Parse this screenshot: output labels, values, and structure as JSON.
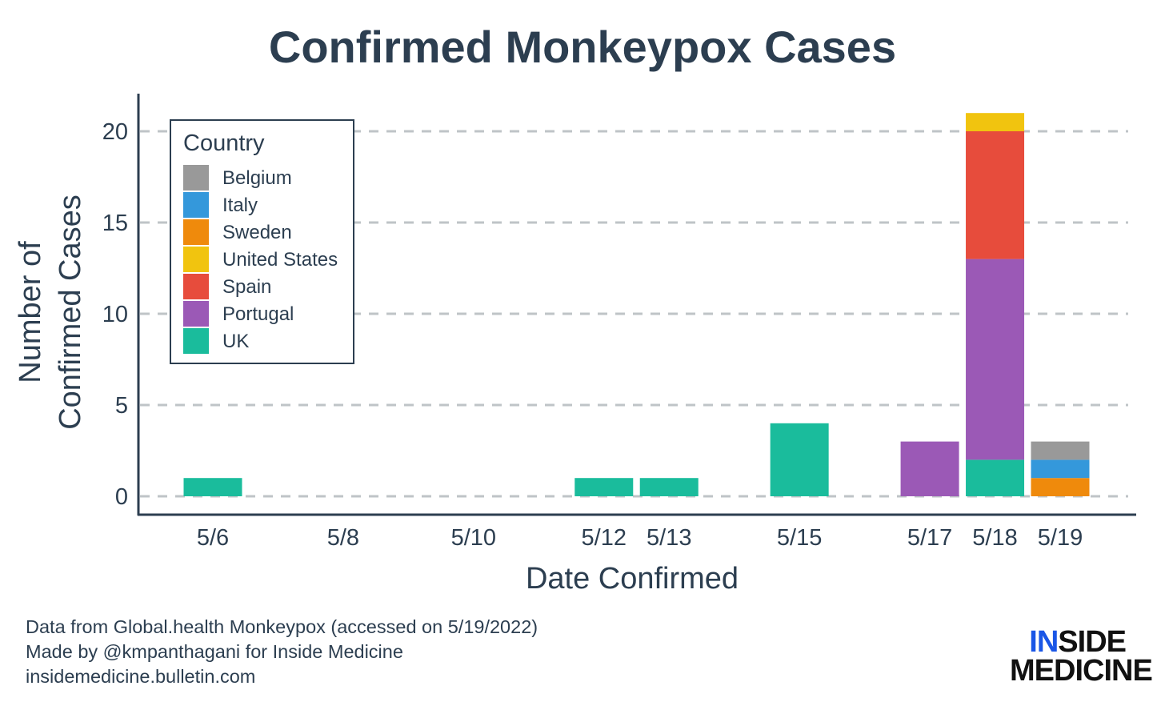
{
  "colors": {
    "Belgium": "#999999",
    "Italy": "#3498db",
    "Sweden": "#ef8a0c",
    "United States": "#f1c40f",
    "Spain": "#e74c3c",
    "Portugal": "#9b59b6",
    "UK": "#1abc9c",
    "text": "#2c3e50",
    "grid": "#bfc4c7",
    "logo_accent": "#1a56e6"
  },
  "chart_data": {
    "type": "bar",
    "stacked": true,
    "title": "Confirmed Monkeypox Cases",
    "xlabel": "Date Confirmed",
    "ylabel": [
      "Number of",
      "Confirmed Cases"
    ],
    "x_ticks": [
      "5/6",
      "5/8",
      "5/10",
      "5/12",
      "5/13",
      "5/15",
      "5/17",
      "5/18",
      "5/19"
    ],
    "y_ticks": [
      0,
      5,
      10,
      15,
      20
    ],
    "ylim": [
      -1,
      22
    ],
    "grid": "horizontal dashed",
    "legend": {
      "title": "Country",
      "position": "top-left",
      "entries": [
        "Belgium",
        "Italy",
        "Sweden",
        "United States",
        "Spain",
        "Portugal",
        "UK"
      ]
    },
    "categories": [
      "5/6",
      "5/12",
      "5/13",
      "5/15",
      "5/17",
      "5/18",
      "5/19"
    ],
    "series": [
      {
        "name": "UK",
        "values": [
          1,
          1,
          1,
          4,
          0,
          2,
          0
        ]
      },
      {
        "name": "Portugal",
        "values": [
          0,
          0,
          0,
          0,
          3,
          11,
          0
        ]
      },
      {
        "name": "Spain",
        "values": [
          0,
          0,
          0,
          0,
          0,
          7,
          0
        ]
      },
      {
        "name": "United States",
        "values": [
          0,
          0,
          0,
          0,
          0,
          1,
          0
        ]
      },
      {
        "name": "Sweden",
        "values": [
          0,
          0,
          0,
          0,
          0,
          0,
          1
        ]
      },
      {
        "name": "Italy",
        "values": [
          0,
          0,
          0,
          0,
          0,
          0,
          1
        ]
      },
      {
        "name": "Belgium",
        "values": [
          0,
          0,
          0,
          0,
          0,
          0,
          1
        ]
      }
    ]
  },
  "footer": {
    "lines": [
      "Data from Global.health Monkeypox (accessed on 5/19/2022)",
      "Made by @kmpanthagani for Inside Medicine",
      "insidemedicine.bulletin.com"
    ],
    "logo": {
      "accent": "IN",
      "rest_line1": "SIDE",
      "line2": "MEDICINE"
    }
  }
}
